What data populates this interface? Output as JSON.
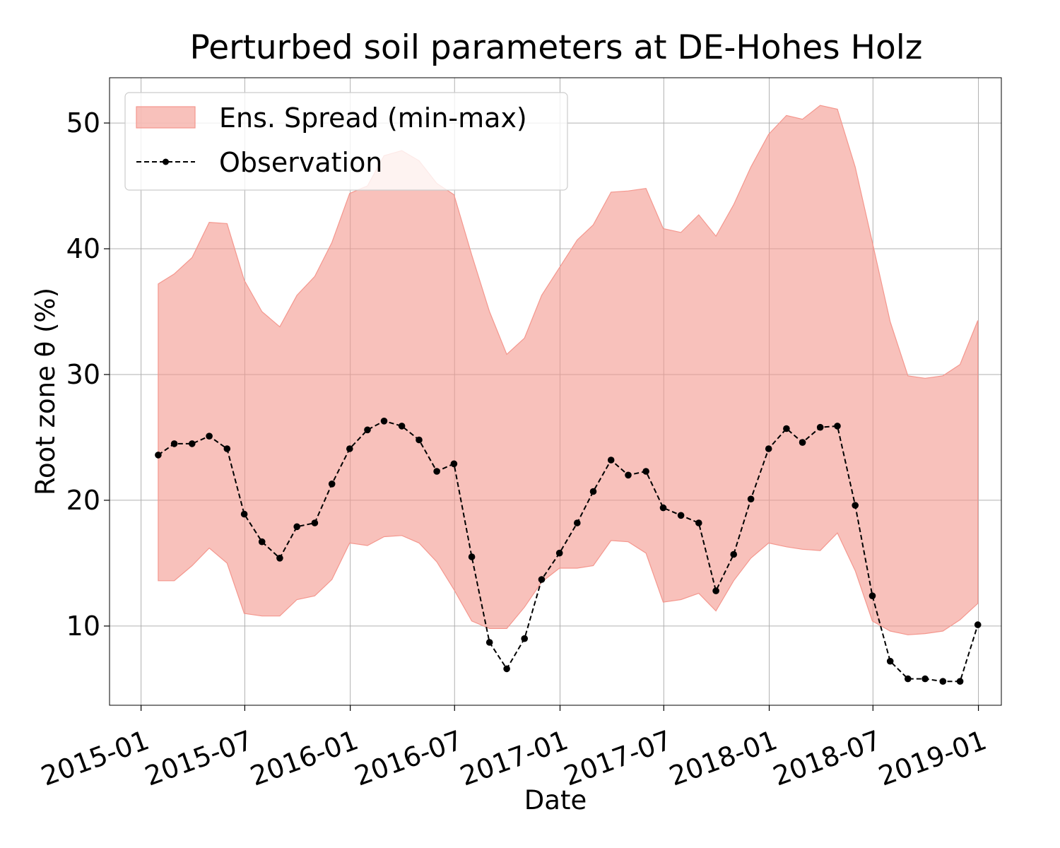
{
  "chart_data": {
    "type": "line",
    "title": "Perturbed soil parameters at DE-Hohes Holz",
    "xlabel": "Date",
    "ylabel": "Root zone θ  (%)",
    "ylim": [
      3.7,
      53.6
    ],
    "xlim": [
      "2014-11-07",
      "2019-02-10"
    ],
    "x_ticks": [
      "2015-01",
      "2015-07",
      "2016-01",
      "2016-07",
      "2017-01",
      "2017-07",
      "2018-01",
      "2018-07",
      "2019-01"
    ],
    "y_ticks": [
      10,
      20,
      30,
      40,
      50
    ],
    "grid": true,
    "legend": {
      "position": "top-left",
      "entries": [
        "Ens. Spread (min-max)",
        "Observation"
      ]
    },
    "x": [
      "2015-01-31",
      "2015-02-28",
      "2015-03-31",
      "2015-04-30",
      "2015-05-31",
      "2015-06-30",
      "2015-07-31",
      "2015-08-31",
      "2015-09-30",
      "2015-10-31",
      "2015-11-30",
      "2015-12-31",
      "2016-01-31",
      "2016-02-29",
      "2016-03-31",
      "2016-04-30",
      "2016-05-31",
      "2016-06-30",
      "2016-07-31",
      "2016-08-31",
      "2016-09-30",
      "2016-10-31",
      "2016-11-30",
      "2016-12-31",
      "2017-01-31",
      "2017-02-28",
      "2017-03-31",
      "2017-04-30",
      "2017-05-31",
      "2017-06-30",
      "2017-07-31",
      "2017-08-31",
      "2017-09-30",
      "2017-10-31",
      "2017-11-30",
      "2017-12-31",
      "2018-01-31",
      "2018-02-28",
      "2018-03-31",
      "2018-04-30",
      "2018-05-31",
      "2018-06-30",
      "2018-07-31",
      "2018-08-31",
      "2018-09-30",
      "2018-10-31",
      "2018-11-30",
      "2018-12-31"
    ],
    "series": [
      {
        "name": "Ens. Spread (min-max)",
        "kind": "band",
        "color": "#f4978e",
        "upper": [
          37.2,
          38.0,
          39.3,
          42.1,
          42.0,
          37.5,
          35.0,
          33.8,
          36.3,
          37.8,
          40.5,
          44.4,
          45.0,
          47.4,
          47.8,
          47.0,
          45.2,
          44.3,
          39.5,
          35.0,
          31.6,
          32.9,
          36.3,
          38.5,
          40.7,
          41.9,
          44.5,
          44.6,
          44.8,
          41.6,
          41.3,
          42.7,
          41.0,
          43.5,
          46.5,
          49.1,
          50.6,
          50.3,
          51.4,
          51.1,
          46.5,
          40.5,
          34.2,
          29.9,
          29.7,
          29.9,
          30.8,
          34.3
        ],
        "lower": [
          13.6,
          13.6,
          14.8,
          16.2,
          15.0,
          11.0,
          10.8,
          10.8,
          12.1,
          12.4,
          13.7,
          16.6,
          16.4,
          17.1,
          17.2,
          16.6,
          15.1,
          12.9,
          10.4,
          9.8,
          9.8,
          11.5,
          13.5,
          14.6,
          14.6,
          14.8,
          16.8,
          16.7,
          15.8,
          11.9,
          12.1,
          12.6,
          11.2,
          13.6,
          15.4,
          16.6,
          16.3,
          16.1,
          16.0,
          17.4,
          14.4,
          10.4,
          9.6,
          9.3,
          9.4,
          9.6,
          10.5,
          11.8
        ]
      },
      {
        "name": "Observation",
        "kind": "line",
        "color": "#000000",
        "values": [
          23.6,
          24.5,
          24.5,
          25.1,
          24.1,
          18.9,
          16.7,
          15.4,
          17.9,
          18.2,
          21.3,
          24.1,
          25.6,
          26.3,
          25.9,
          24.8,
          22.3,
          22.9,
          15.5,
          8.7,
          6.6,
          9.0,
          13.7,
          15.8,
          18.2,
          20.7,
          23.2,
          22.0,
          22.3,
          19.4,
          18.8,
          18.2,
          12.8,
          15.7,
          20.1,
          24.1,
          25.7,
          24.6,
          25.8,
          25.9,
          19.6,
          12.4,
          7.2,
          5.8,
          5.8,
          5.6,
          5.6,
          10.1
        ]
      }
    ]
  }
}
